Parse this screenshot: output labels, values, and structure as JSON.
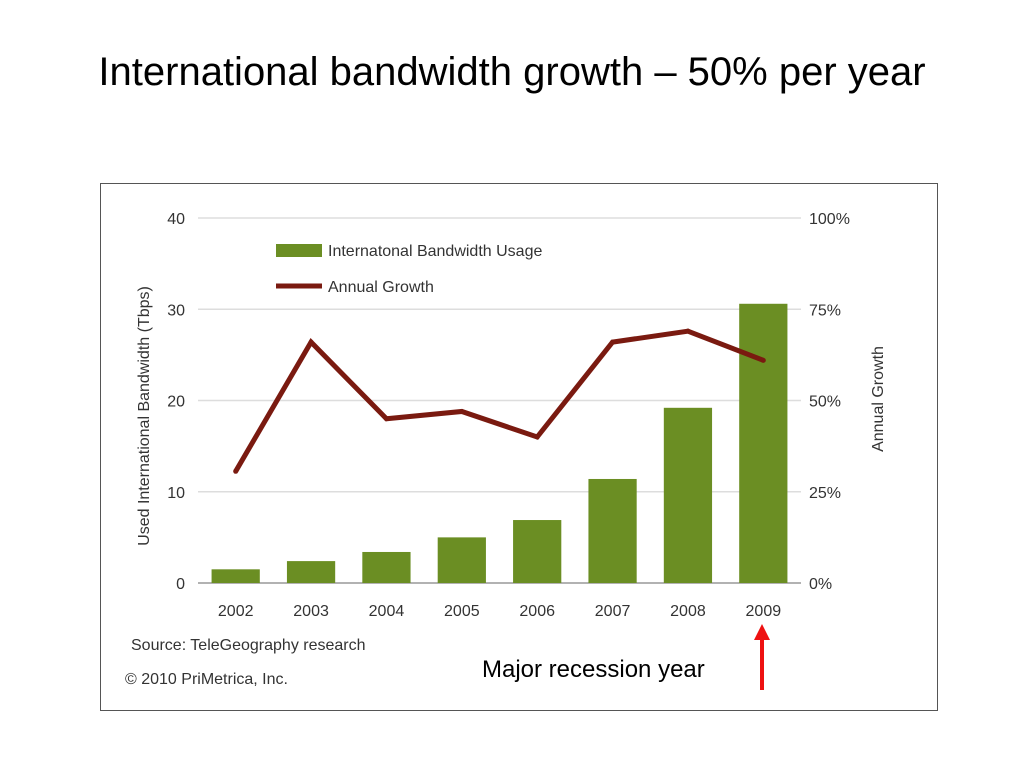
{
  "slide": {
    "title": "International bandwidth growth – 50% per year",
    "annotation": "Major recession year"
  },
  "chart_data": {
    "type": "bar",
    "categories": [
      "2002",
      "2003",
      "2004",
      "2005",
      "2006",
      "2007",
      "2008",
      "2009"
    ],
    "series": [
      {
        "name": "Internatonal Bandwidth Usage",
        "kind": "bar",
        "axis": "left",
        "color": "#6b8e23",
        "values": [
          1.5,
          2.4,
          3.4,
          5.0,
          6.9,
          11.4,
          19.2,
          30.6
        ]
      },
      {
        "name": "Annual Growth",
        "kind": "line",
        "axis": "right",
        "color": "#7a1a10",
        "values": [
          30.6,
          66,
          45,
          47,
          40,
          66,
          69,
          61
        ]
      }
    ],
    "ylabel": "Used International Bandwidth (Tbps)",
    "ylabel_right": "Annual Growth",
    "ylim": [
      0,
      40
    ],
    "ylim_right": [
      0,
      100
    ],
    "yticks": [
      "0",
      "10",
      "20",
      "30",
      "40"
    ],
    "yticks_right": [
      "0%",
      "25%",
      "50%",
      "75%",
      "100%"
    ],
    "grid": true,
    "legend_position": "top-left",
    "source": "Source: TeleGeography research",
    "copyright": "© 2010 PriMetrica, Inc."
  }
}
